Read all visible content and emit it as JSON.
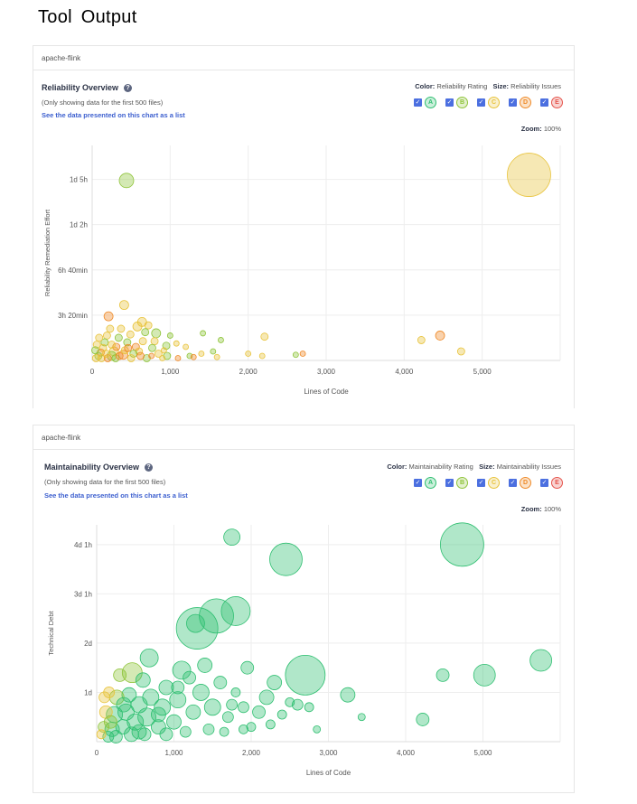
{
  "page_title": "Tool  Output",
  "charts": [
    {
      "project": "apache-flink",
      "title": "Reliability Overview",
      "note": "(Only showing data for the first 500 files)",
      "list_link": "See the data presented on this chart as a list",
      "color_label": "Color:",
      "color_value": "Reliability Rating",
      "size_label": "Size:",
      "size_value": "Reliability Issues",
      "zoom_label": "Zoom:",
      "zoom_value": "100%",
      "ratings": [
        {
          "letter": "A",
          "color": "#2fbf71"
        },
        {
          "letter": "B",
          "color": "#8fc43a"
        },
        {
          "letter": "C",
          "color": "#e8c33b"
        },
        {
          "letter": "D",
          "color": "#ef8a28"
        },
        {
          "letter": "E",
          "color": "#e5534b"
        }
      ],
      "xlabel": "Lines of Code",
      "ylabel": "Reliability Remediation Effort"
    },
    {
      "project": "apache-flink",
      "title": "Maintainability Overview",
      "note": "(Only showing data for the first 500 files)",
      "list_link": "See the data presented on this chart as a list",
      "color_label": "Color:",
      "color_value": "Maintainability Rating",
      "size_label": "Size:",
      "size_value": "Maintainability Issues",
      "zoom_label": "Zoom:",
      "zoom_value": "100%",
      "ratings": [
        {
          "letter": "A",
          "color": "#2fbf71"
        },
        {
          "letter": "B",
          "color": "#8fc43a"
        },
        {
          "letter": "C",
          "color": "#e8c33b"
        },
        {
          "letter": "D",
          "color": "#ef8a28"
        },
        {
          "letter": "E",
          "color": "#e5534b"
        }
      ],
      "xlabel": "Lines of Code",
      "ylabel": "Technical Debt"
    }
  ],
  "chart_data": [
    {
      "type": "scatter",
      "title": "Reliability Overview",
      "xlabel": "Lines of Code",
      "ylabel": "Reliability Remediation Effort",
      "xlim": [
        0,
        6000
      ],
      "ylim": [
        0,
        1900
      ],
      "x_ticks": [
        {
          "v": 0,
          "label": "0"
        },
        {
          "v": 1000,
          "label": "1,000"
        },
        {
          "v": 2000,
          "label": "2,000"
        },
        {
          "v": 3000,
          "label": "3,000"
        },
        {
          "v": 4000,
          "label": "4,000"
        },
        {
          "v": 5000,
          "label": "5,000"
        }
      ],
      "y_ticks": [
        {
          "v": 400,
          "label": "3h 20min"
        },
        {
          "v": 800,
          "label": "6h 40min"
        },
        {
          "v": 1200,
          "label": "1d 2h"
        },
        {
          "v": 1600,
          "label": "1d 5h"
        }
      ],
      "grid": true,
      "points": [
        {
          "x": 5600,
          "y": 1640,
          "size": 24,
          "rating": "C"
        },
        {
          "x": 440,
          "y": 1590,
          "size": 8,
          "rating": "B"
        },
        {
          "x": 4460,
          "y": 220,
          "size": 5,
          "rating": "D"
        },
        {
          "x": 4220,
          "y": 180,
          "size": 4,
          "rating": "C"
        },
        {
          "x": 4730,
          "y": 80,
          "size": 4,
          "rating": "C"
        },
        {
          "x": 2210,
          "y": 210,
          "size": 4,
          "rating": "C"
        },
        {
          "x": 2000,
          "y": 60,
          "size": 3,
          "rating": "C"
        },
        {
          "x": 2180,
          "y": 40,
          "size": 3,
          "rating": "C"
        },
        {
          "x": 2610,
          "y": 50,
          "size": 3,
          "rating": "B"
        },
        {
          "x": 2700,
          "y": 60,
          "size": 3,
          "rating": "D"
        },
        {
          "x": 1650,
          "y": 180,
          "size": 3,
          "rating": "B"
        },
        {
          "x": 1550,
          "y": 80,
          "size": 3,
          "rating": "B"
        },
        {
          "x": 1400,
          "y": 60,
          "size": 3,
          "rating": "C"
        },
        {
          "x": 1420,
          "y": 240,
          "size": 3,
          "rating": "B"
        },
        {
          "x": 1250,
          "y": 40,
          "size": 3,
          "rating": "B"
        },
        {
          "x": 1300,
          "y": 30,
          "size": 3,
          "rating": "D"
        },
        {
          "x": 1600,
          "y": 30,
          "size": 3,
          "rating": "C"
        },
        {
          "x": 1200,
          "y": 120,
          "size": 3,
          "rating": "C"
        },
        {
          "x": 1000,
          "y": 220,
          "size": 3,
          "rating": "B"
        },
        {
          "x": 950,
          "y": 130,
          "size": 4,
          "rating": "B"
        },
        {
          "x": 1080,
          "y": 150,
          "size": 3,
          "rating": "C"
        },
        {
          "x": 960,
          "y": 40,
          "size": 4,
          "rating": "B"
        },
        {
          "x": 920,
          "y": 90,
          "size": 3,
          "rating": "C"
        },
        {
          "x": 820,
          "y": 240,
          "size": 5,
          "rating": "B"
        },
        {
          "x": 800,
          "y": 170,
          "size": 4,
          "rating": "C"
        },
        {
          "x": 770,
          "y": 110,
          "size": 4,
          "rating": "B"
        },
        {
          "x": 850,
          "y": 60,
          "size": 4,
          "rating": "C"
        },
        {
          "x": 760,
          "y": 40,
          "size": 3,
          "rating": "D"
        },
        {
          "x": 720,
          "y": 310,
          "size": 4,
          "rating": "C"
        },
        {
          "x": 640,
          "y": 340,
          "size": 5,
          "rating": "C"
        },
        {
          "x": 580,
          "y": 300,
          "size": 5,
          "rating": "C"
        },
        {
          "x": 680,
          "y": 250,
          "size": 4,
          "rating": "B"
        },
        {
          "x": 650,
          "y": 170,
          "size": 4,
          "rating": "C"
        },
        {
          "x": 560,
          "y": 120,
          "size": 4,
          "rating": "D"
        },
        {
          "x": 600,
          "y": 80,
          "size": 4,
          "rating": "C"
        },
        {
          "x": 530,
          "y": 60,
          "size": 4,
          "rating": "B"
        },
        {
          "x": 490,
          "y": 230,
          "size": 4,
          "rating": "C"
        },
        {
          "x": 450,
          "y": 160,
          "size": 4,
          "rating": "B"
        },
        {
          "x": 420,
          "y": 90,
          "size": 4,
          "rating": "C"
        },
        {
          "x": 400,
          "y": 50,
          "size": 5,
          "rating": "D"
        },
        {
          "x": 410,
          "y": 490,
          "size": 5,
          "rating": "C"
        },
        {
          "x": 370,
          "y": 280,
          "size": 4,
          "rating": "C"
        },
        {
          "x": 340,
          "y": 200,
          "size": 4,
          "rating": "B"
        },
        {
          "x": 310,
          "y": 120,
          "size": 4,
          "rating": "D"
        },
        {
          "x": 280,
          "y": 80,
          "size": 5,
          "rating": "C"
        },
        {
          "x": 250,
          "y": 40,
          "size": 5,
          "rating": "B"
        },
        {
          "x": 210,
          "y": 390,
          "size": 5,
          "rating": "D"
        },
        {
          "x": 230,
          "y": 280,
          "size": 4,
          "rating": "C"
        },
        {
          "x": 190,
          "y": 220,
          "size": 4,
          "rating": "C"
        },
        {
          "x": 160,
          "y": 160,
          "size": 4,
          "rating": "B"
        },
        {
          "x": 140,
          "y": 110,
          "size": 4,
          "rating": "C"
        },
        {
          "x": 110,
          "y": 70,
          "size": 4,
          "rating": "D"
        },
        {
          "x": 80,
          "y": 40,
          "size": 4,
          "rating": "B"
        },
        {
          "x": 60,
          "y": 140,
          "size": 4,
          "rating": "C"
        },
        {
          "x": 40,
          "y": 90,
          "size": 4,
          "rating": "B"
        },
        {
          "x": 120,
          "y": 20,
          "size": 4,
          "rating": "C"
        },
        {
          "x": 200,
          "y": 20,
          "size": 4,
          "rating": "D"
        },
        {
          "x": 300,
          "y": 20,
          "size": 4,
          "rating": "B"
        },
        {
          "x": 500,
          "y": 20,
          "size": 4,
          "rating": "C"
        },
        {
          "x": 700,
          "y": 20,
          "size": 4,
          "rating": "B"
        },
        {
          "x": 900,
          "y": 20,
          "size": 3,
          "rating": "C"
        },
        {
          "x": 1100,
          "y": 20,
          "size": 3,
          "rating": "D"
        },
        {
          "x": 50,
          "y": 20,
          "size": 4,
          "rating": "C"
        },
        {
          "x": 350,
          "y": 40,
          "size": 4,
          "rating": "D"
        },
        {
          "x": 620,
          "y": 40,
          "size": 4,
          "rating": "D"
        },
        {
          "x": 250,
          "y": 140,
          "size": 4,
          "rating": "C"
        },
        {
          "x": 180,
          "y": 60,
          "size": 4,
          "rating": "C"
        },
        {
          "x": 460,
          "y": 110,
          "size": 4,
          "rating": "D"
        },
        {
          "x": 90,
          "y": 200,
          "size": 4,
          "rating": "C"
        }
      ]
    },
    {
      "type": "scatter",
      "title": "Maintainability Overview",
      "xlabel": "Lines of Code",
      "ylabel": "Technical Debt",
      "xlim": [
        0,
        6000
      ],
      "ylim": [
        0,
        4.4
      ],
      "x_ticks": [
        {
          "v": 0,
          "label": "0"
        },
        {
          "v": 1000,
          "label": "1,000"
        },
        {
          "v": 2000,
          "label": "2,000"
        },
        {
          "v": 3000,
          "label": "3,000"
        },
        {
          "v": 4000,
          "label": "4,000"
        },
        {
          "v": 5000,
          "label": "5,000"
        }
      ],
      "y_ticks": [
        {
          "v": 1,
          "label": "1d"
        },
        {
          "v": 2,
          "label": "2d"
        },
        {
          "v": 3,
          "label": "3d 1h"
        },
        {
          "v": 4,
          "label": "4d 1h"
        }
      ],
      "grid": true,
      "points": [
        {
          "x": 4730,
          "y": 4.0,
          "size": 24,
          "rating": "A"
        },
        {
          "x": 1750,
          "y": 4.15,
          "size": 9,
          "rating": "A"
        },
        {
          "x": 2450,
          "y": 3.7,
          "size": 18,
          "rating": "A"
        },
        {
          "x": 1800,
          "y": 2.65,
          "size": 16,
          "rating": "A"
        },
        {
          "x": 1550,
          "y": 2.55,
          "size": 19,
          "rating": "A"
        },
        {
          "x": 1300,
          "y": 2.3,
          "size": 23,
          "rating": "A"
        },
        {
          "x": 1280,
          "y": 2.4,
          "size": 10,
          "rating": "A"
        },
        {
          "x": 2700,
          "y": 1.35,
          "size": 22,
          "rating": "A"
        },
        {
          "x": 5020,
          "y": 1.35,
          "size": 12,
          "rating": "A"
        },
        {
          "x": 5750,
          "y": 1.65,
          "size": 12,
          "rating": "A"
        },
        {
          "x": 4480,
          "y": 1.35,
          "size": 7,
          "rating": "A"
        },
        {
          "x": 4220,
          "y": 0.45,
          "size": 7,
          "rating": "A"
        },
        {
          "x": 3250,
          "y": 0.95,
          "size": 8,
          "rating": "A"
        },
        {
          "x": 3430,
          "y": 0.5,
          "size": 4,
          "rating": "A"
        },
        {
          "x": 2850,
          "y": 0.25,
          "size": 4,
          "rating": "A"
        },
        {
          "x": 2600,
          "y": 0.75,
          "size": 6,
          "rating": "A"
        },
        {
          "x": 2750,
          "y": 0.7,
          "size": 5,
          "rating": "A"
        },
        {
          "x": 2500,
          "y": 0.8,
          "size": 5,
          "rating": "A"
        },
        {
          "x": 2300,
          "y": 1.2,
          "size": 8,
          "rating": "A"
        },
        {
          "x": 2200,
          "y": 0.9,
          "size": 8,
          "rating": "A"
        },
        {
          "x": 2100,
          "y": 0.6,
          "size": 7,
          "rating": "A"
        },
        {
          "x": 2000,
          "y": 0.3,
          "size": 5,
          "rating": "A"
        },
        {
          "x": 1950,
          "y": 1.5,
          "size": 7,
          "rating": "A"
        },
        {
          "x": 1900,
          "y": 0.7,
          "size": 6,
          "rating": "A"
        },
        {
          "x": 1800,
          "y": 1.0,
          "size": 5,
          "rating": "A"
        },
        {
          "x": 1700,
          "y": 0.5,
          "size": 6,
          "rating": "A"
        },
        {
          "x": 1600,
          "y": 1.2,
          "size": 7,
          "rating": "A"
        },
        {
          "x": 1500,
          "y": 0.7,
          "size": 9,
          "rating": "A"
        },
        {
          "x": 1400,
          "y": 1.55,
          "size": 8,
          "rating": "A"
        },
        {
          "x": 1350,
          "y": 1.0,
          "size": 9,
          "rating": "A"
        },
        {
          "x": 1250,
          "y": 0.6,
          "size": 8,
          "rating": "A"
        },
        {
          "x": 1200,
          "y": 1.3,
          "size": 7,
          "rating": "A"
        },
        {
          "x": 1100,
          "y": 1.45,
          "size": 10,
          "rating": "A"
        },
        {
          "x": 1050,
          "y": 0.85,
          "size": 9,
          "rating": "A"
        },
        {
          "x": 1000,
          "y": 0.4,
          "size": 8,
          "rating": "A"
        },
        {
          "x": 900,
          "y": 1.1,
          "size": 8,
          "rating": "A"
        },
        {
          "x": 850,
          "y": 0.7,
          "size": 9,
          "rating": "A"
        },
        {
          "x": 800,
          "y": 0.3,
          "size": 8,
          "rating": "A"
        },
        {
          "x": 680,
          "y": 1.7,
          "size": 10,
          "rating": "A"
        },
        {
          "x": 700,
          "y": 0.9,
          "size": 9,
          "rating": "A"
        },
        {
          "x": 650,
          "y": 0.5,
          "size": 10,
          "rating": "A"
        },
        {
          "x": 600,
          "y": 1.25,
          "size": 8,
          "rating": "A"
        },
        {
          "x": 550,
          "y": 0.75,
          "size": 9,
          "rating": "A"
        },
        {
          "x": 500,
          "y": 0.4,
          "size": 9,
          "rating": "A"
        },
        {
          "x": 460,
          "y": 1.4,
          "size": 11,
          "rating": "B"
        },
        {
          "x": 420,
          "y": 0.95,
          "size": 8,
          "rating": "A"
        },
        {
          "x": 380,
          "y": 0.6,
          "size": 9,
          "rating": "A"
        },
        {
          "x": 340,
          "y": 0.3,
          "size": 8,
          "rating": "A"
        },
        {
          "x": 300,
          "y": 1.35,
          "size": 7,
          "rating": "B"
        },
        {
          "x": 260,
          "y": 0.9,
          "size": 8,
          "rating": "B"
        },
        {
          "x": 230,
          "y": 0.55,
          "size": 9,
          "rating": "A"
        },
        {
          "x": 200,
          "y": 0.25,
          "size": 8,
          "rating": "A"
        },
        {
          "x": 160,
          "y": 1.0,
          "size": 6,
          "rating": "C"
        },
        {
          "x": 120,
          "y": 0.6,
          "size": 7,
          "rating": "C"
        },
        {
          "x": 90,
          "y": 0.3,
          "size": 6,
          "rating": "B"
        },
        {
          "x": 60,
          "y": 0.15,
          "size": 5,
          "rating": "C"
        },
        {
          "x": 150,
          "y": 0.1,
          "size": 6,
          "rating": "A"
        },
        {
          "x": 250,
          "y": 0.1,
          "size": 7,
          "rating": "A"
        },
        {
          "x": 450,
          "y": 0.15,
          "size": 8,
          "rating": "A"
        },
        {
          "x": 620,
          "y": 0.15,
          "size": 7,
          "rating": "A"
        },
        {
          "x": 900,
          "y": 0.15,
          "size": 7,
          "rating": "A"
        },
        {
          "x": 1150,
          "y": 0.2,
          "size": 6,
          "rating": "A"
        },
        {
          "x": 1450,
          "y": 0.25,
          "size": 6,
          "rating": "A"
        },
        {
          "x": 1650,
          "y": 0.2,
          "size": 5,
          "rating": "A"
        },
        {
          "x": 2250,
          "y": 0.35,
          "size": 5,
          "rating": "A"
        },
        {
          "x": 2400,
          "y": 0.55,
          "size": 5,
          "rating": "A"
        },
        {
          "x": 1900,
          "y": 0.25,
          "size": 5,
          "rating": "A"
        },
        {
          "x": 1750,
          "y": 0.75,
          "size": 6,
          "rating": "A"
        },
        {
          "x": 1050,
          "y": 1.1,
          "size": 7,
          "rating": "A"
        },
        {
          "x": 800,
          "y": 0.55,
          "size": 8,
          "rating": "A"
        },
        {
          "x": 350,
          "y": 0.75,
          "size": 8,
          "rating": "A"
        },
        {
          "x": 550,
          "y": 0.2,
          "size": 8,
          "rating": "A"
        },
        {
          "x": 180,
          "y": 0.4,
          "size": 7,
          "rating": "B"
        },
        {
          "x": 100,
          "y": 0.9,
          "size": 6,
          "rating": "C"
        }
      ]
    }
  ]
}
